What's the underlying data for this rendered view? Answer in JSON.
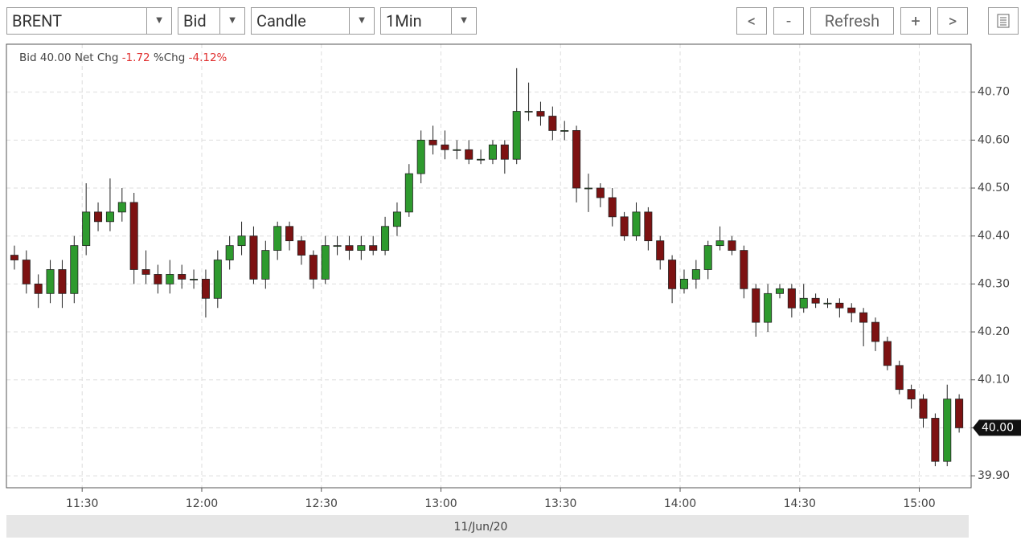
{
  "toolbar": {
    "symbol": "BRENT",
    "field": "Bid",
    "style": "Candle",
    "interval": "1Min",
    "buttons": [
      "<",
      "-",
      "Refresh",
      "+",
      ">"
    ]
  },
  "info": {
    "field_label": "Bid",
    "bid": "40.00",
    "net_chg_label": "Net Chg",
    "net_chg": "-1.72",
    "pct_chg_label": "%Chg",
    "pct_chg": "-4.12%"
  },
  "chart_data": {
    "type": "candlestick",
    "x_label": "11/Jun/20",
    "up_color": "#2e9a2e",
    "down_color": "#7d1212",
    "grid": true,
    "xlim": [
      "11:11",
      "15:13"
    ],
    "xticks": [
      "11:30",
      "12:00",
      "12:30",
      "13:00",
      "13:30",
      "14:00",
      "14:30",
      "15:00"
    ],
    "ylim": [
      39.875,
      40.8
    ],
    "yticks": [
      {
        "value": 39.9,
        "label": "39.90"
      },
      {
        "value": 40.0,
        "label": "40.00"
      },
      {
        "value": 40.1,
        "label": "40.10"
      },
      {
        "value": 40.2,
        "label": "40.20"
      },
      {
        "value": 40.3,
        "label": "40.30"
      },
      {
        "value": 40.4,
        "label": "40.40"
      },
      {
        "value": 40.5,
        "label": "40.50"
      },
      {
        "value": 40.6,
        "label": "40.60"
      },
      {
        "value": 40.7,
        "label": "40.70"
      }
    ],
    "last_price": {
      "value": 40.0,
      "label": "40.00"
    },
    "x": [
      "11:13",
      "11:16",
      "11:19",
      "11:22",
      "11:25",
      "11:28",
      "11:31",
      "11:34",
      "11:37",
      "11:40",
      "11:43",
      "11:46",
      "11:49",
      "11:52",
      "11:55",
      "11:58",
      "12:01",
      "12:04",
      "12:07",
      "12:10",
      "12:13",
      "12:16",
      "12:19",
      "12:22",
      "12:25",
      "12:28",
      "12:31",
      "12:34",
      "12:37",
      "12:40",
      "12:43",
      "12:46",
      "12:49",
      "12:52",
      "12:55",
      "12:58",
      "13:01",
      "13:04",
      "13:07",
      "13:10",
      "13:13",
      "13:16",
      "13:19",
      "13:22",
      "13:25",
      "13:28",
      "13:31",
      "13:34",
      "13:37",
      "13:40",
      "13:43",
      "13:46",
      "13:49",
      "13:52",
      "13:55",
      "13:58",
      "14:01",
      "14:04",
      "14:07",
      "14:10",
      "14:13",
      "14:16",
      "14:19",
      "14:22",
      "14:25",
      "14:28",
      "14:31",
      "14:34",
      "14:37",
      "14:40",
      "14:43",
      "14:46",
      "14:49",
      "14:52",
      "14:55",
      "14:58",
      "15:01",
      "15:04",
      "15:07",
      "15:10"
    ],
    "open": [
      40.36,
      40.35,
      40.3,
      40.28,
      40.33,
      40.28,
      40.38,
      40.45,
      40.43,
      40.45,
      40.47,
      40.33,
      40.32,
      40.3,
      40.32,
      40.31,
      40.31,
      40.27,
      40.35,
      40.38,
      40.4,
      40.31,
      40.37,
      40.42,
      40.39,
      40.36,
      40.31,
      40.38,
      40.38,
      40.37,
      40.38,
      40.37,
      40.42,
      40.45,
      40.53,
      40.6,
      40.59,
      40.58,
      40.58,
      40.56,
      40.56,
      40.59,
      40.56,
      40.66,
      40.66,
      40.65,
      40.62,
      40.62,
      40.5,
      40.5,
      40.48,
      40.44,
      40.4,
      40.45,
      40.39,
      40.35,
      40.29,
      40.31,
      40.33,
      40.38,
      40.39,
      40.37,
      40.29,
      40.22,
      40.28,
      40.29,
      40.25,
      40.27,
      40.26,
      40.26,
      40.25,
      40.24,
      40.22,
      40.18,
      40.13,
      40.08,
      40.06,
      40.02,
      39.93,
      40.06
    ],
    "high": [
      40.38,
      40.37,
      40.32,
      40.35,
      40.35,
      40.4,
      40.51,
      40.47,
      40.52,
      40.5,
      40.49,
      40.37,
      40.34,
      40.35,
      40.34,
      40.33,
      40.33,
      40.37,
      40.4,
      40.43,
      40.42,
      40.39,
      40.43,
      40.43,
      40.4,
      40.37,
      40.4,
      40.4,
      40.4,
      40.4,
      40.4,
      40.44,
      40.47,
      40.55,
      40.62,
      40.63,
      40.62,
      40.6,
      40.6,
      40.58,
      40.6,
      40.6,
      40.75,
      40.72,
      40.68,
      40.67,
      40.64,
      40.63,
      40.53,
      40.51,
      40.5,
      40.45,
      40.47,
      40.46,
      40.4,
      40.36,
      40.33,
      40.35,
      40.39,
      40.42,
      40.4,
      40.38,
      40.3,
      40.3,
      40.3,
      40.3,
      40.3,
      40.28,
      40.27,
      40.27,
      40.26,
      40.25,
      40.23,
      40.19,
      40.14,
      40.09,
      40.07,
      40.03,
      40.09,
      40.07
    ],
    "low": [
      40.33,
      40.28,
      40.25,
      40.26,
      40.25,
      40.26,
      40.36,
      40.41,
      40.41,
      40.43,
      40.3,
      40.3,
      40.28,
      40.28,
      40.29,
      40.29,
      40.23,
      40.25,
      40.33,
      40.36,
      40.3,
      40.29,
      40.35,
      40.37,
      40.34,
      40.29,
      40.3,
      40.36,
      40.35,
      40.35,
      40.36,
      40.36,
      40.4,
      40.44,
      40.51,
      40.57,
      40.56,
      40.56,
      40.55,
      40.55,
      40.55,
      40.53,
      40.55,
      40.64,
      40.63,
      40.6,
      40.6,
      40.47,
      40.45,
      40.46,
      40.42,
      40.39,
      40.39,
      40.37,
      40.33,
      40.26,
      40.28,
      40.29,
      40.31,
      40.37,
      40.36,
      40.27,
      40.19,
      40.2,
      40.27,
      40.23,
      40.24,
      40.25,
      40.25,
      40.23,
      40.22,
      40.17,
      40.16,
      40.12,
      40.07,
      40.04,
      40.0,
      39.92,
      39.92,
      39.99
    ],
    "close": [
      40.35,
      40.3,
      40.28,
      40.33,
      40.28,
      40.38,
      40.45,
      40.43,
      40.45,
      40.47,
      40.33,
      40.32,
      40.3,
      40.32,
      40.31,
      40.31,
      40.27,
      40.35,
      40.38,
      40.4,
      40.31,
      40.37,
      40.42,
      40.39,
      40.36,
      40.31,
      40.38,
      40.38,
      40.37,
      40.38,
      40.37,
      40.42,
      40.45,
      40.53,
      40.6,
      40.59,
      40.58,
      40.58,
      40.56,
      40.56,
      40.59,
      40.56,
      40.66,
      40.66,
      40.65,
      40.62,
      40.62,
      40.5,
      40.5,
      40.48,
      40.44,
      40.4,
      40.45,
      40.39,
      40.35,
      40.29,
      40.31,
      40.33,
      40.38,
      40.39,
      40.37,
      40.29,
      40.22,
      40.28,
      40.29,
      40.25,
      40.27,
      40.26,
      40.26,
      40.25,
      40.24,
      40.22,
      40.18,
      40.13,
      40.08,
      40.06,
      40.02,
      39.93,
      40.06,
      40.0
    ]
  }
}
